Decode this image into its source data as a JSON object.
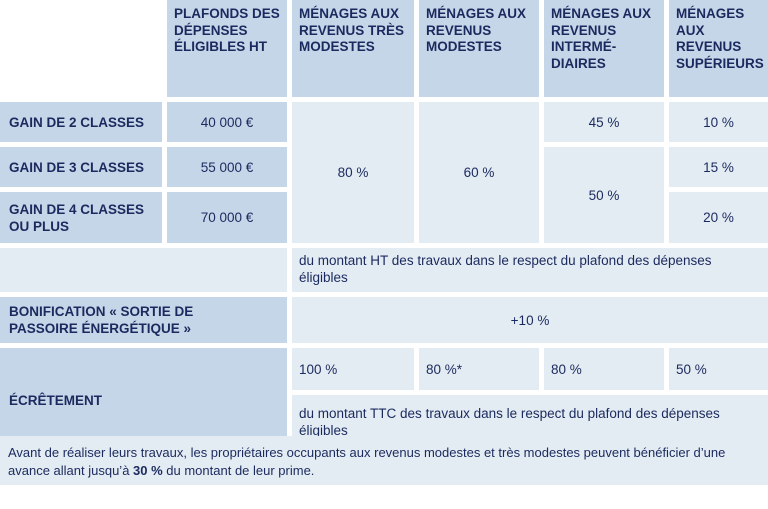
{
  "headers": {
    "plafonds": "PLAFONDS DES DÉPENSES ÉLIGIBLES HT",
    "tres_modestes": "MÉNAGES AUX REVENUS TRÈS MODESTES",
    "modestes": "MÉNAGES AUX REVENUS MODESTES",
    "intermediaires": "MÉNAGES AUX REVENUS INTERMÉ-DIAIRES",
    "superieurs": "MÉNAGES AUX REVENUS SUPÉRIEURS"
  },
  "rows": [
    {
      "label": "GAIN DE 2 CLASSES",
      "plafond": "40 000 €",
      "intermediaires": "45 %",
      "superieurs": "10 %"
    },
    {
      "label": "GAIN DE 3 CLASSES",
      "plafond": "55 000 €",
      "superieurs": "15 %"
    },
    {
      "label": "GAIN DE 4 CLASSES OU PLUS",
      "plafond": "70 000 €",
      "superieurs": "20 %"
    }
  ],
  "merged": {
    "tres_modestes": "80 %",
    "modestes": "60 %",
    "intermediaires_3_4": "50 %"
  },
  "montant_ht_note": "du montant HT des travaux dans le respect du plafond des dépenses éligibles",
  "bonification": {
    "label": "BONIFICATION « SORTIE DE PASSOIRE ÉNERGÉTIQUE »",
    "value": "+10 %"
  },
  "ecretement": {
    "label": "ÉCRÊTEMENT",
    "values": [
      "100 %",
      "80 %*",
      "80 %",
      "50 %"
    ],
    "note": "du montant TTC des travaux dans le respect du plafond des dépenses éligibles"
  },
  "footer": {
    "before": "Avant de réaliser leurs travaux, les propriétaires occupants aux revenus modestes et très modestes peuvent bénéficier d’une avance allant jusqu’à ",
    "bold": "30 %",
    "after": " du montant de leur prime."
  },
  "colors": {
    "dark_cell": "#c5d6e8",
    "pale_cell": "#e3ebf3",
    "text": "#1b2a5e"
  }
}
